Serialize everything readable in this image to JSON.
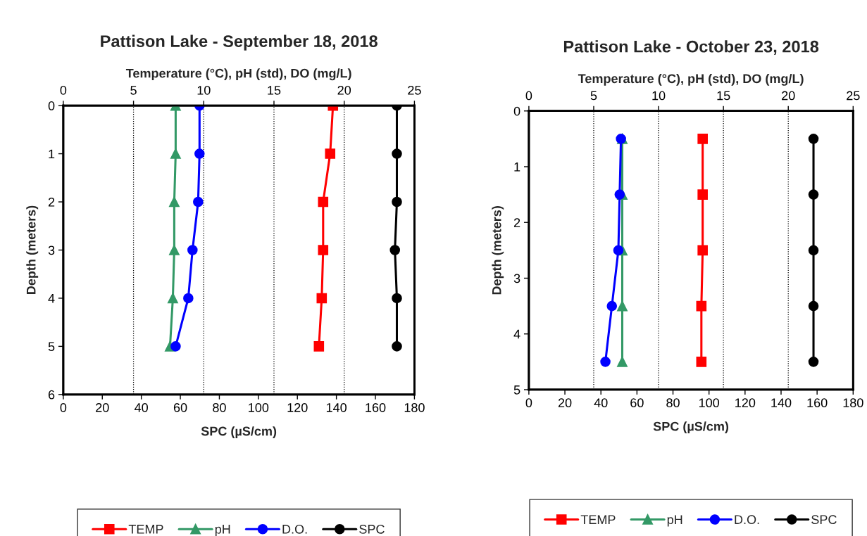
{
  "chart_data": [
    {
      "type": "line",
      "title": "Pattison Lake - September 18, 2018",
      "xlabel": "SPC (µS/cm)",
      "x2label": "Temperature (°C), pH (std), DO (mg/L)",
      "ylabel": "Depth (meters)",
      "orientation": "horizontal",
      "x": [
        0,
        1,
        2,
        3,
        4,
        5
      ],
      "series": [
        {
          "name": "TEMP",
          "color": "#ff0000",
          "marker": "square",
          "axis": "x2",
          "values": [
            19.2,
            19.0,
            18.5,
            18.5,
            18.4,
            18.2
          ]
        },
        {
          "name": "pH",
          "color": "#339966",
          "marker": "triangle",
          "axis": "x2",
          "values": [
            8.0,
            8.0,
            7.9,
            7.9,
            7.8,
            7.6
          ]
        },
        {
          "name": "D.O.",
          "color": "#0000ff",
          "marker": "circle",
          "axis": "x2",
          "values": [
            9.7,
            9.7,
            9.6,
            9.2,
            8.9,
            8.0
          ]
        },
        {
          "name": "SPC",
          "color": "#000000",
          "marker": "circle",
          "values": [
            171,
            171,
            171,
            170,
            171,
            171
          ]
        }
      ],
      "xlim": [
        0,
        180
      ],
      "xticks": [
        0,
        20,
        40,
        60,
        80,
        100,
        120,
        140,
        160,
        180
      ],
      "x2lim": [
        0,
        25
      ],
      "x2ticks": [
        0,
        5,
        10,
        15,
        20,
        25
      ],
      "ylim": [
        6,
        0
      ],
      "yticks": [
        0,
        1,
        2,
        3,
        4,
        5,
        6
      ],
      "grid": "x2",
      "legend": "bottom"
    },
    {
      "type": "line",
      "title": "Pattison Lake - October 23, 2018",
      "xlabel": "SPC (µS/cm)",
      "x2label": "Temperature (°C), pH (std), DO (mg/L)",
      "ylabel": "Depth (meters)",
      "orientation": "horizontal",
      "x": [
        0.5,
        1.5,
        2.5,
        3.5,
        4.5
      ],
      "series": [
        {
          "name": "TEMP",
          "color": "#ff0000",
          "marker": "square",
          "axis": "x2",
          "values": [
            13.4,
            13.4,
            13.4,
            13.3,
            13.3
          ]
        },
        {
          "name": "pH",
          "color": "#339966",
          "marker": "triangle",
          "axis": "x2",
          "values": [
            7.2,
            7.2,
            7.2,
            7.2,
            7.2
          ]
        },
        {
          "name": "D.O.",
          "color": "#0000ff",
          "marker": "circle",
          "axis": "x2",
          "values": [
            7.1,
            7.0,
            6.9,
            6.4,
            5.9
          ]
        },
        {
          "name": "SPC",
          "color": "#000000",
          "marker": "circle",
          "values": [
            158,
            158,
            158,
            158,
            158
          ]
        }
      ],
      "xlim": [
        0,
        180
      ],
      "xticks": [
        0,
        20,
        40,
        60,
        80,
        100,
        120,
        140,
        160,
        180
      ],
      "x2lim": [
        0,
        25
      ],
      "x2ticks": [
        0,
        5,
        10,
        15,
        20,
        25
      ],
      "ylim": [
        5,
        0
      ],
      "yticks": [
        0,
        1,
        2,
        3,
        4,
        5
      ],
      "grid": "x2",
      "legend": "bottom"
    }
  ]
}
